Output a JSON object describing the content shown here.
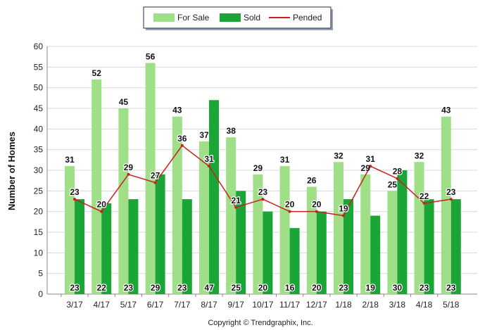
{
  "chart_data": {
    "type": "bar",
    "title": "",
    "ylabel": "Number of Homes",
    "xlabel": "",
    "ylim": [
      0,
      60
    ],
    "yticks": [
      0,
      5,
      10,
      15,
      20,
      25,
      30,
      35,
      40,
      45,
      50,
      55,
      60
    ],
    "grid": true,
    "legend_position": "top-center",
    "categories": [
      "3/17",
      "4/17",
      "5/17",
      "6/17",
      "7/17",
      "8/17",
      "9/17",
      "10/17",
      "11/17",
      "12/17",
      "1/18",
      "2/18",
      "3/18",
      "4/18",
      "5/18"
    ],
    "series": [
      {
        "name": "For Sale",
        "type": "bar",
        "color": "#9fdf87",
        "values": [
          31,
          52,
          45,
          56,
          43,
          37,
          38,
          29,
          31,
          26,
          32,
          29,
          25,
          32,
          43
        ]
      },
      {
        "name": "Sold",
        "type": "bar",
        "color": "#1aa637",
        "values": [
          23,
          22,
          23,
          29,
          23,
          47,
          25,
          20,
          16,
          20,
          23,
          19,
          30,
          23,
          23
        ]
      },
      {
        "name": "Pended",
        "type": "line",
        "color": "#c8201e",
        "values": [
          23,
          20,
          29,
          27,
          36,
          31,
          21,
          23,
          20,
          20,
          19,
          31,
          28,
          22,
          23
        ]
      }
    ],
    "credit": "Copyright © Trendgraphix, Inc."
  }
}
